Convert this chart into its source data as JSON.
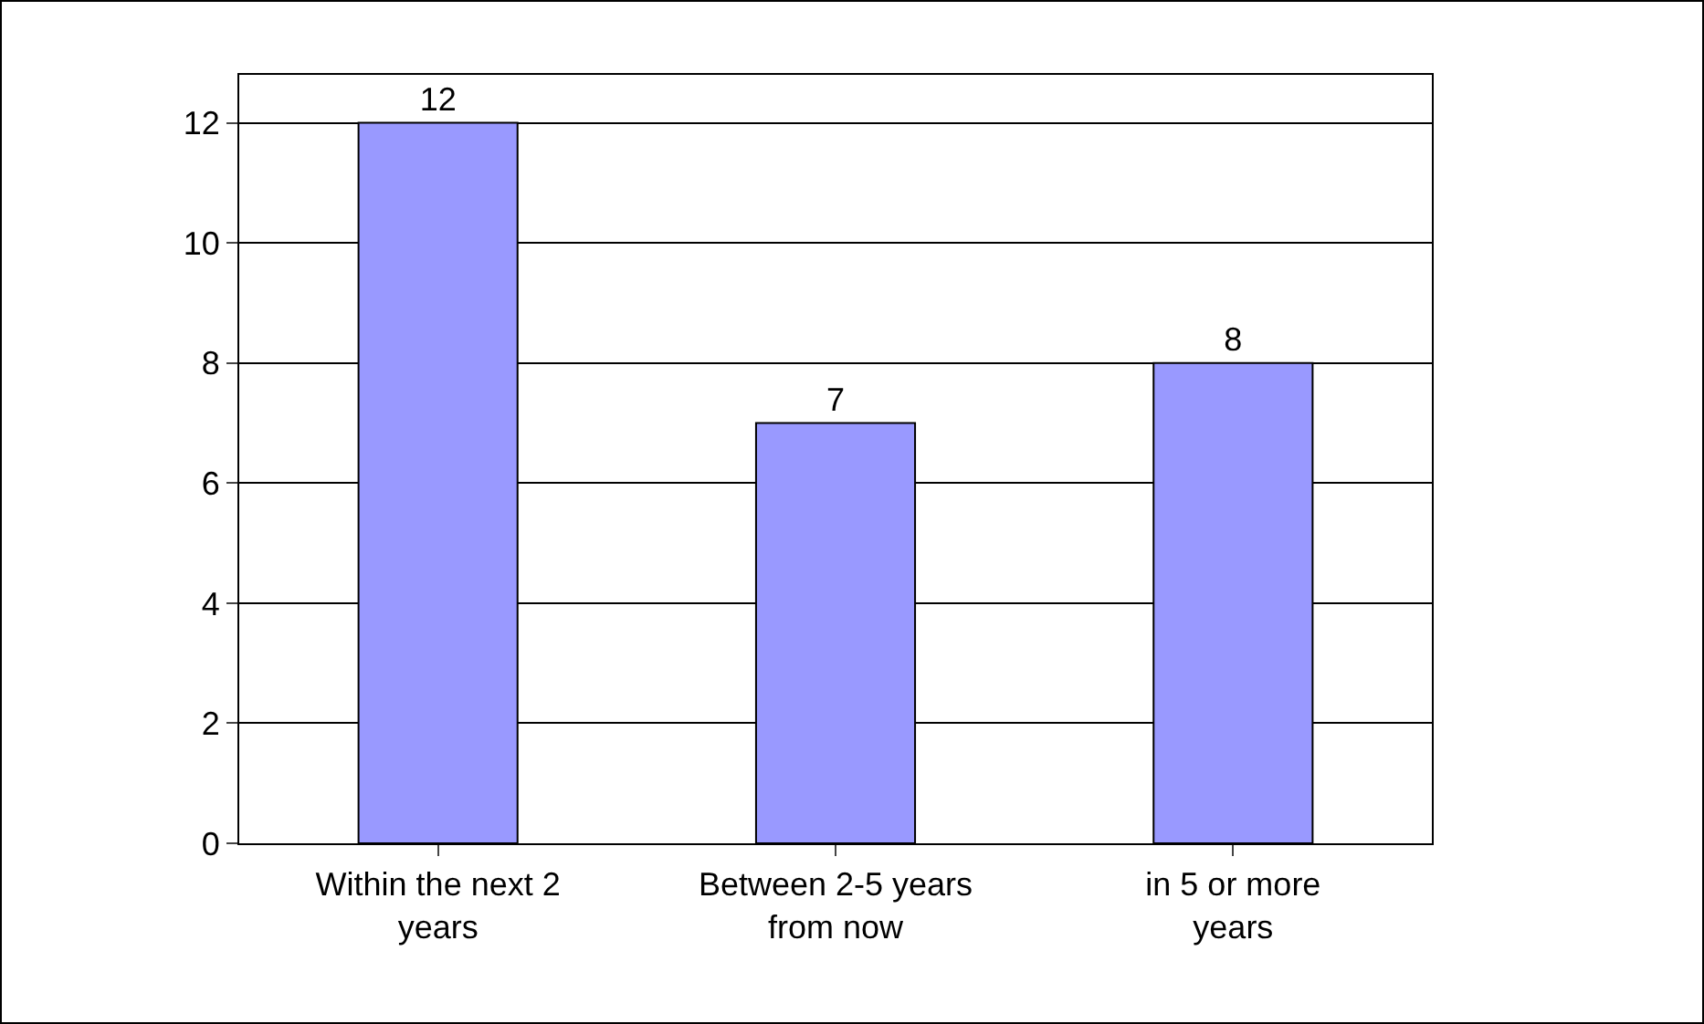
{
  "chart_data": {
    "type": "bar",
    "categories": [
      "Within the next 2 years",
      "Between 2-5 years from now",
      "in 5 or more years"
    ],
    "values": [
      12,
      7,
      8
    ],
    "color": "#9999ff",
    "ylim": [
      0,
      12.8
    ],
    "yticks": [
      0,
      2,
      4,
      6,
      8,
      10,
      12
    ],
    "grid": "y",
    "data_labels": true,
    "legend": false
  }
}
